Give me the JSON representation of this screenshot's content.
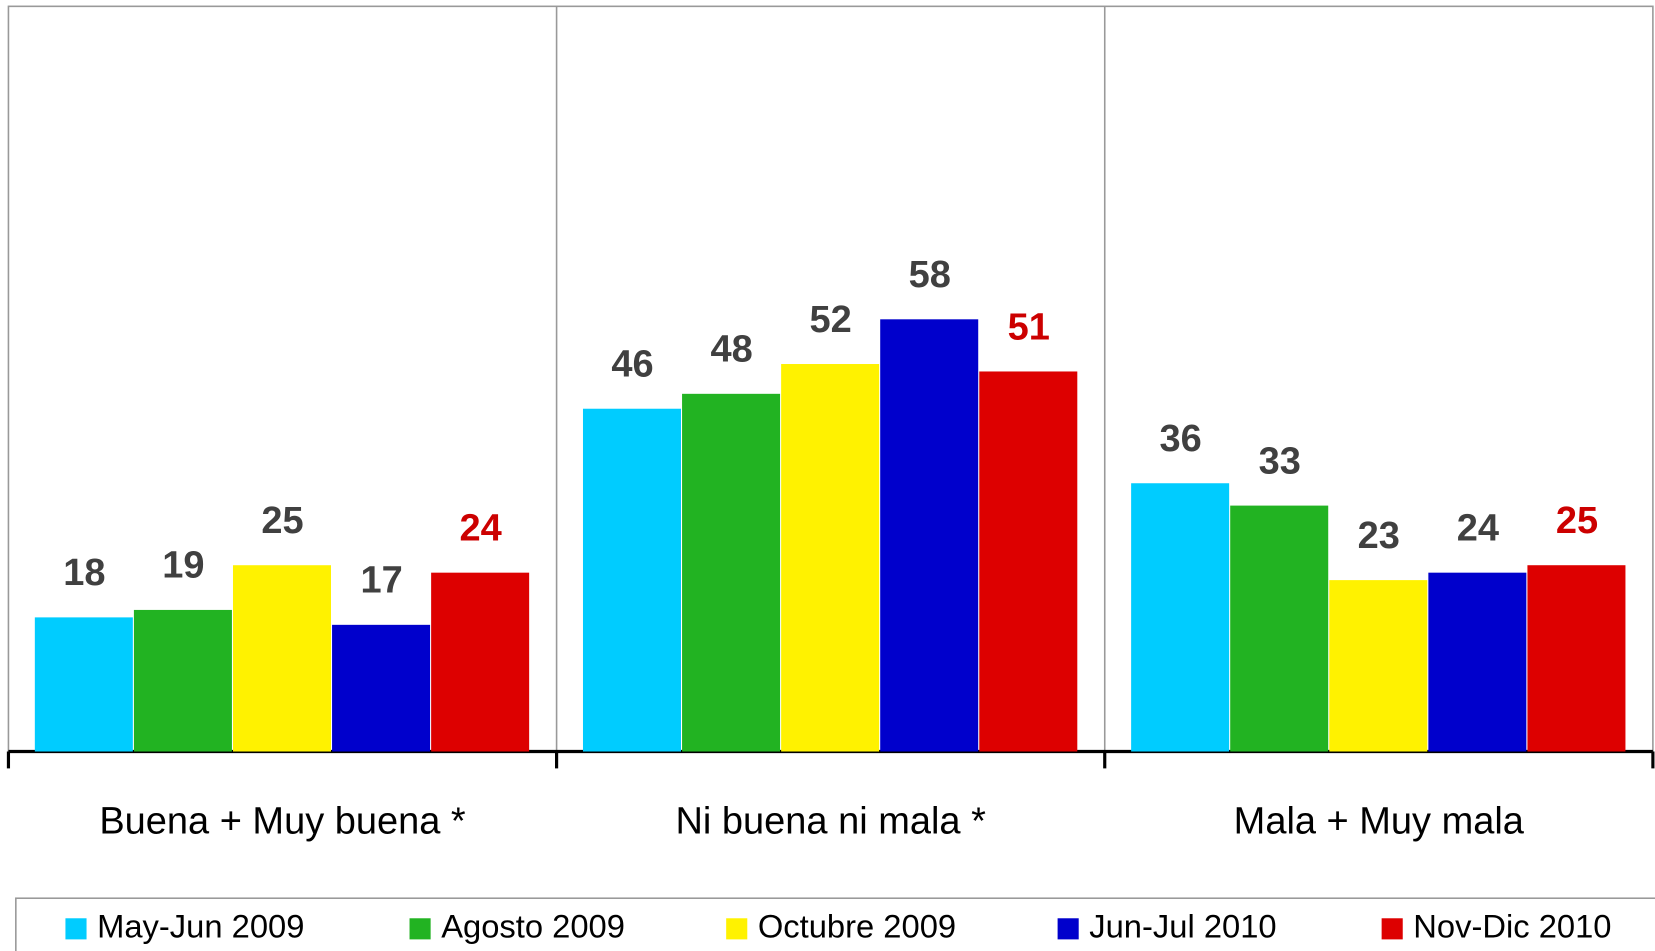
{
  "chart_data": {
    "type": "bar",
    "categories": [
      "Buena + Muy buena *",
      "Ni buena ni mala *",
      "Mala + Muy mala"
    ],
    "series": [
      {
        "name": "May-Jun 2009",
        "color": "#00ccff",
        "label_color": "#404040",
        "values": [
          18,
          46,
          36
        ]
      },
      {
        "name": "Agosto 2009",
        "color": "#22b322",
        "label_color": "#404040",
        "values": [
          19,
          48,
          33
        ]
      },
      {
        "name": "Octubre 2009",
        "color": "#fff200",
        "label_color": "#404040",
        "values": [
          25,
          52,
          23
        ]
      },
      {
        "name": "Jun-Jul 2010",
        "color": "#0000cc",
        "label_color": "#404040",
        "values": [
          17,
          58,
          24
        ]
      },
      {
        "name": "Nov-Dic 2010",
        "color": "#dd0000",
        "label_color": "#cc0000",
        "values": [
          24,
          51,
          25
        ]
      }
    ],
    "ylim": [
      0,
      100
    ],
    "legend": "bottom"
  }
}
